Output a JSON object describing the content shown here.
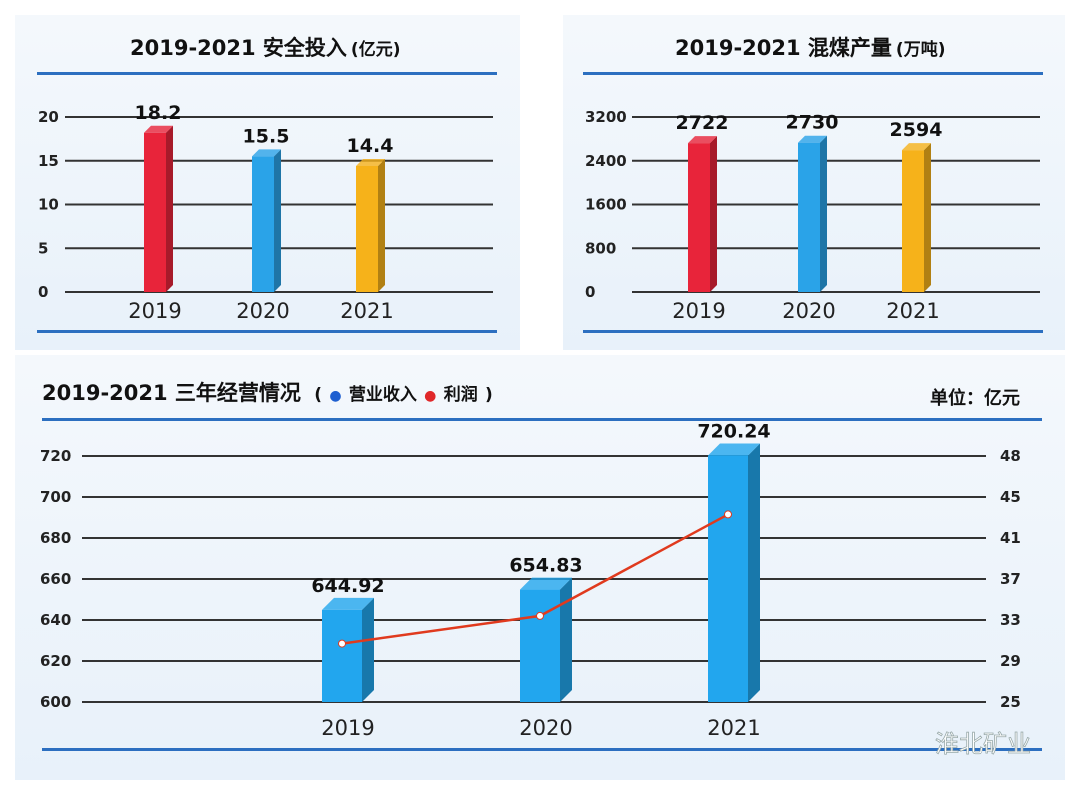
{
  "chart_data": [
    {
      "type": "bar",
      "title": "2019-2021 安全投入",
      "unit": "(亿元)",
      "categories": [
        "2019",
        "2020",
        "2021"
      ],
      "values": [
        18.2,
        15.5,
        14.4
      ],
      "colors": [
        "#e8243a",
        "#2aa3e8",
        "#f6b21a"
      ],
      "yticks": [
        0,
        5,
        10,
        15,
        20
      ],
      "ylim": [
        0,
        20
      ],
      "grid": true
    },
    {
      "type": "bar",
      "title": "2019-2021 混煤产量",
      "unit": "(万吨)",
      "categories": [
        "2019",
        "2020",
        "2021"
      ],
      "values": [
        2722,
        2730,
        2594
      ],
      "colors": [
        "#e8243a",
        "#2aa3e8",
        "#f6b21a"
      ],
      "yticks": [
        0,
        800,
        1600,
        2400,
        3200
      ],
      "ylim": [
        0,
        3200
      ],
      "grid": true
    },
    {
      "type": "bar+line",
      "title": "2019-2021 三年经营情况",
      "legend_open": "(",
      "legend_close": ")",
      "unit_label": "单位：亿元",
      "categories": [
        "2019",
        "2020",
        "2021"
      ],
      "series": [
        {
          "name": "营业收入",
          "type": "bar",
          "axis": "left",
          "color": "#1e73d6",
          "values": [
            644.92,
            654.83,
            720.24
          ]
        },
        {
          "name": "利润",
          "type": "line",
          "axis": "right",
          "color": "#e03a1e",
          "values": [
            30.7,
            33.4,
            43.3
          ]
        }
      ],
      "yticks_left": [
        600,
        620,
        640,
        660,
        680,
        700,
        720
      ],
      "yticks_right": [
        25,
        29,
        33,
        37,
        41,
        45,
        48
      ],
      "ylim_left": [
        600,
        720
      ],
      "grid": true,
      "legend": "top-left"
    }
  ],
  "watermark": "淮北矿业"
}
